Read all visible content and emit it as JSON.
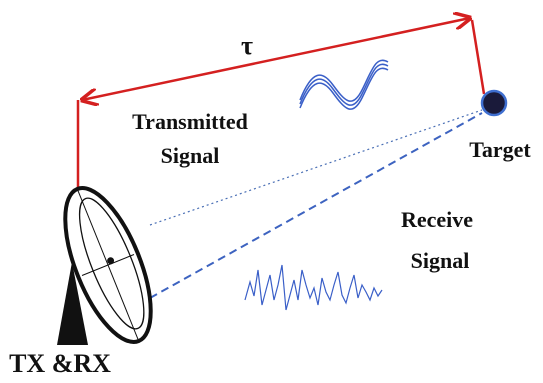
{
  "labels": {
    "tau": "τ",
    "transmitted": [
      "Transmitted",
      "Signal"
    ],
    "target": "Target",
    "receive": [
      "Receive",
      "Signal"
    ],
    "txrx": "TX &RX"
  }
}
